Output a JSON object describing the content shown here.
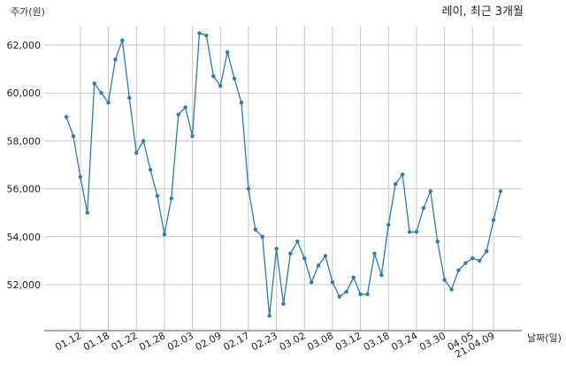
{
  "chart_data": {
    "type": "line",
    "title": "레이, 최근 3개월",
    "ylabel": "주가(원)",
    "xlabel": "날짜(일)",
    "ylim": [
      50200,
      63200
    ],
    "yticks": [
      52000,
      54000,
      56000,
      58000,
      60000,
      62000
    ],
    "ytick_labels": [
      "52,000",
      "54,000",
      "56,000",
      "58,000",
      "60,000",
      "62,000"
    ],
    "xtick_labels": [
      "01.12",
      "01.18",
      "01.22",
      "01.28",
      "02.03",
      "02.09",
      "02.17",
      "02.23",
      "03.02",
      "03.08",
      "03.12",
      "03.18",
      "03.24",
      "03.30",
      "04.05",
      "21.04.09"
    ],
    "xtick_indices": [
      2,
      6,
      10,
      14,
      18,
      22,
      26,
      30,
      34,
      38,
      42,
      46,
      50,
      54,
      58,
      61
    ],
    "grid": true,
    "color": "#2c7bb6",
    "series": [
      {
        "values": [
          59000,
          58200,
          56500,
          55000,
          60400,
          60000,
          59600,
          61400,
          62200,
          59800,
          57500,
          58000,
          56800,
          55700,
          54100,
          55600,
          59100,
          59400,
          58200,
          62500,
          62400,
          60700,
          60300,
          61700,
          60600,
          59600,
          56000,
          54300,
          54000,
          50700,
          53500,
          51200,
          53300,
          53800,
          53100,
          52100,
          52800,
          53200,
          52100,
          51500,
          51700,
          52300,
          51600,
          51600,
          53300,
          52400,
          54500,
          56200,
          56600,
          54200,
          54200,
          55200,
          55900,
          53800,
          52200,
          51800,
          52600,
          52900,
          53100,
          53000,
          53400,
          54700,
          55900
        ]
      }
    ]
  }
}
